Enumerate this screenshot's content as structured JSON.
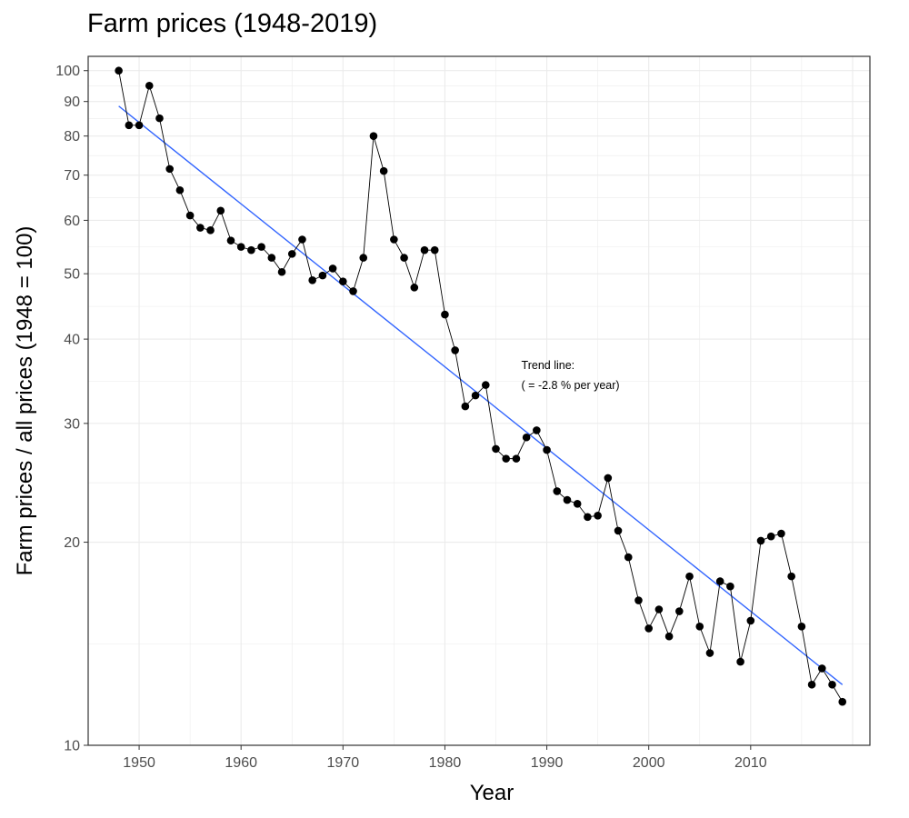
{
  "chart_data": {
    "type": "line",
    "title": "Farm prices (1948-2019)",
    "xlabel": "Year",
    "ylabel": "Farm prices / all prices (1948 = 100)",
    "yscale": "log",
    "xlim": [
      1945,
      2021.7
    ],
    "ylim": [
      10,
      105
    ],
    "x_ticks": [
      1950,
      1960,
      1970,
      1980,
      1990,
      2000,
      2010
    ],
    "y_ticks": [
      10,
      20,
      30,
      40,
      50,
      60,
      70,
      80,
      90,
      100
    ],
    "grid": true,
    "legend": "none",
    "series": [
      {
        "x": [
          1948,
          1949,
          1950,
          1951,
          1952,
          1953,
          1954,
          1955,
          1956,
          1957,
          1958,
          1959,
          1960,
          1961,
          1962,
          1963,
          1964,
          1965,
          1966,
          1967,
          1968,
          1969,
          1970,
          1971,
          1972,
          1973,
          1974,
          1975,
          1976,
          1977,
          1978,
          1979,
          1980,
          1981,
          1982,
          1983,
          1984,
          1985,
          1986,
          1987,
          1988,
          1989,
          1990,
          1991,
          1992,
          1993,
          1994,
          1995,
          1996,
          1997,
          1998,
          1999,
          2000,
          2001,
          2002,
          2003,
          2004,
          2005,
          2006,
          2007,
          2008,
          2009,
          2010,
          2011,
          2012,
          2013,
          2014,
          2015,
          2016,
          2017,
          2018,
          2019
        ],
        "values": [
          100,
          83,
          83,
          95,
          85,
          71.5,
          66.5,
          61,
          58.5,
          58,
          62,
          56,
          54.8,
          54.2,
          54.8,
          52.8,
          50.3,
          53.5,
          56.2,
          48.9,
          49.7,
          50.9,
          48.7,
          47.1,
          52.8,
          80,
          71,
          56.2,
          52.8,
          47.7,
          54.2,
          54.2,
          43.5,
          38.5,
          31.8,
          33,
          34.2,
          27.5,
          26.6,
          26.6,
          28.6,
          29.3,
          27.4,
          23.8,
          23.1,
          22.8,
          21.8,
          21.9,
          24.9,
          20.8,
          19,
          16.4,
          14.9,
          15.9,
          14.5,
          15.8,
          17.8,
          15,
          13.7,
          17.5,
          17.2,
          13.3,
          15.3,
          20.1,
          20.4,
          20.6,
          17.8,
          15,
          12.3,
          13,
          12.3,
          11.6
        ],
        "color": "#000000"
      },
      {
        "x": [
          1948,
          2019
        ],
        "values": [
          88.6,
          12.3
        ],
        "color": "#3366ff",
        "line_only": true
      }
    ],
    "annotation": {
      "line1": "Trend line:",
      "line2": "( =  -2.8 % per year)",
      "x": 1987.5,
      "y": 35.9
    }
  }
}
